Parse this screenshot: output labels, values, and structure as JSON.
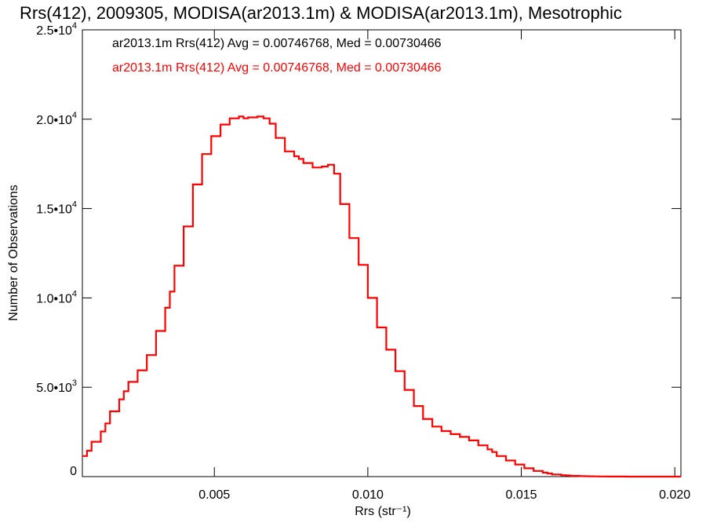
{
  "chart_data": {
    "type": "line",
    "title": "Rrs(412), 2009305, MODISA(ar2013.1m) & MODISA(ar2013.1m), Mesotrophic",
    "xlabel": "Rrs (str⁻¹)",
    "ylabel": "Number of Observations",
    "xlim": [
      0.0007,
      0.0202
    ],
    "ylim": [
      0,
      25000
    ],
    "x_ticks": [
      {
        "value": 0.005,
        "label": "0.005"
      },
      {
        "value": 0.01,
        "label": "0.010"
      },
      {
        "value": 0.015,
        "label": "0.015"
      },
      {
        "value": 0.02,
        "label": "0.020"
      }
    ],
    "y_ticks": [
      {
        "value": 0,
        "mant": "0",
        "exp": ""
      },
      {
        "value": 5000,
        "mant": "5.0•10",
        "exp": "3"
      },
      {
        "value": 10000,
        "mant": "1.0•10",
        "exp": "4"
      },
      {
        "value": 15000,
        "mant": "1.5•10",
        "exp": "4"
      },
      {
        "value": 20000,
        "mant": "2.0•10",
        "exp": "4"
      },
      {
        "value": 25000,
        "mant": "2.5•10",
        "exp": "4"
      }
    ],
    "annotations": [
      {
        "text": "ar2013.1m Rrs(412) Avg = 0.00746768, Med = 0.00730466",
        "color": "#000000"
      },
      {
        "text": "ar2013.1m Rrs(412) Avg = 0.00746768, Med = 0.00730466",
        "color": "#ff0000"
      }
    ],
    "series": [
      {
        "color": "#ff0000",
        "x": [
          0.0007,
          0.001,
          0.0013,
          0.0016,
          0.0019,
          0.0022,
          0.0025,
          0.0028,
          0.0031,
          0.0034,
          0.0037,
          0.004,
          0.0043,
          0.0046,
          0.0049,
          0.0052,
          0.0055,
          0.0058,
          0.0061,
          0.0064,
          0.0066,
          0.0068,
          0.007,
          0.0073,
          0.0076,
          0.0079,
          0.0082,
          0.0085,
          0.0087,
          0.0089,
          0.0091,
          0.0094,
          0.0097,
          0.01,
          0.0103,
          0.0106,
          0.0109,
          0.0112,
          0.0115,
          0.0118,
          0.0121,
          0.0124,
          0.0127,
          0.013,
          0.0133,
          0.0136,
          0.0139,
          0.0142,
          0.0145,
          0.0148,
          0.0151,
          0.0154,
          0.0157,
          0.016,
          0.0163,
          0.0166,
          0.0169,
          0.0172,
          0.0175,
          0.0178,
          0.0181,
          0.0184,
          0.0187,
          0.019,
          0.0193,
          0.0196,
          0.0199,
          0.0202
        ],
        "values": [
          1000,
          1600,
          2300,
          3200,
          4100,
          5000,
          5600,
          6300,
          7300,
          9000,
          10800,
          12800,
          15200,
          17500,
          18600,
          19500,
          19900,
          20200,
          20000,
          20200,
          20100,
          20000,
          19500,
          18400,
          18000,
          17700,
          17400,
          17200,
          17500,
          17400,
          16500,
          14000,
          12700,
          11000,
          9000,
          7700,
          6500,
          5300,
          4400,
          3500,
          2950,
          2650,
          2450,
          2300,
          2150,
          1900,
          1600,
          1300,
          1000,
          800,
          550,
          380,
          250,
          150,
          90,
          55,
          30,
          18,
          10,
          6,
          3,
          2,
          1,
          0,
          0,
          0,
          0,
          0
        ]
      }
    ]
  }
}
